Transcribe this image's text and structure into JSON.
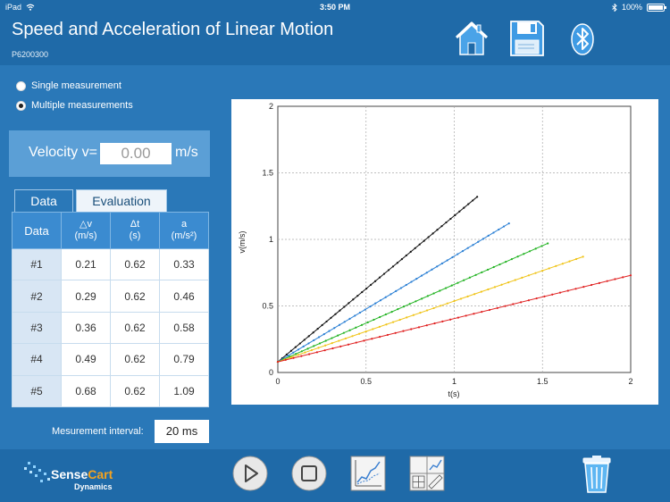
{
  "status_bar": {
    "device": "iPad",
    "time": "3:50 PM",
    "battery": "100%"
  },
  "header": {
    "title": "Speed and Acceleration of Linear Motion",
    "subtitle": "P6200300"
  },
  "mode": {
    "single_label": "Single measurement",
    "multiple_label": "Multiple measurements",
    "selected": "multiple"
  },
  "velocity": {
    "label": "Velocity v=",
    "value": "0.00",
    "unit": "m/s"
  },
  "tabs": {
    "data_label": "Data",
    "evaluation_label": "Evaluation",
    "active": "evaluation"
  },
  "table": {
    "headers": {
      "col0": "Data",
      "col1_sym": "△v",
      "col1_unit": "(m/s)",
      "col2_sym": "Δt",
      "col2_unit": "(s)",
      "col3_sym": "a",
      "col3_unit": "(m/s²)"
    },
    "rows": [
      {
        "id": "#1",
        "dv": "0.21",
        "dt": "0.62",
        "a": "0.33"
      },
      {
        "id": "#2",
        "dv": "0.29",
        "dt": "0.62",
        "a": "0.46"
      },
      {
        "id": "#3",
        "dv": "0.36",
        "dt": "0.62",
        "a": "0.58"
      },
      {
        "id": "#4",
        "dv": "0.49",
        "dt": "0.62",
        "a": "0.79"
      },
      {
        "id": "#5",
        "dv": "0.68",
        "dt": "0.62",
        "a": "1.09"
      }
    ]
  },
  "interval": {
    "label": "Mesurement interval:",
    "value": "20 ms"
  },
  "brand": {
    "name_part1": "Sense",
    "name_part2": "Cart",
    "sub": "Dynamics"
  },
  "icons": {
    "home": "home-icon",
    "save": "save-icon",
    "bluetooth": "bluetooth-icon",
    "play": "play-icon",
    "stop": "stop-icon",
    "graph": "graph-icon",
    "table_graph": "table-graph-icon",
    "trash": "trash-icon"
  },
  "chart_data": {
    "type": "scatter",
    "xlabel": "t(s)",
    "ylabel": "v(m/s)",
    "xlim": [
      0,
      2
    ],
    "ylim": [
      0,
      2
    ],
    "x_ticks": [
      "0",
      "0.5",
      "1",
      "1.5",
      "2"
    ],
    "y_ticks": [
      "0",
      "0.5",
      "1",
      "1.5",
      "2"
    ],
    "grid": true,
    "series": [
      {
        "color": "#111111",
        "start": [
          0,
          0.08
        ],
        "end": [
          1.13,
          1.32
        ]
      },
      {
        "color": "#2a7fd4",
        "start": [
          0,
          0.08
        ],
        "end": [
          1.31,
          1.12
        ]
      },
      {
        "color": "#22b322",
        "start": [
          0,
          0.08
        ],
        "end": [
          1.53,
          0.97
        ]
      },
      {
        "color": "#f0c419",
        "start": [
          0,
          0.08
        ],
        "end": [
          1.73,
          0.87
        ]
      },
      {
        "color": "#e02020",
        "start": [
          0,
          0.08
        ],
        "end": [
          2.0,
          0.73
        ]
      }
    ]
  }
}
